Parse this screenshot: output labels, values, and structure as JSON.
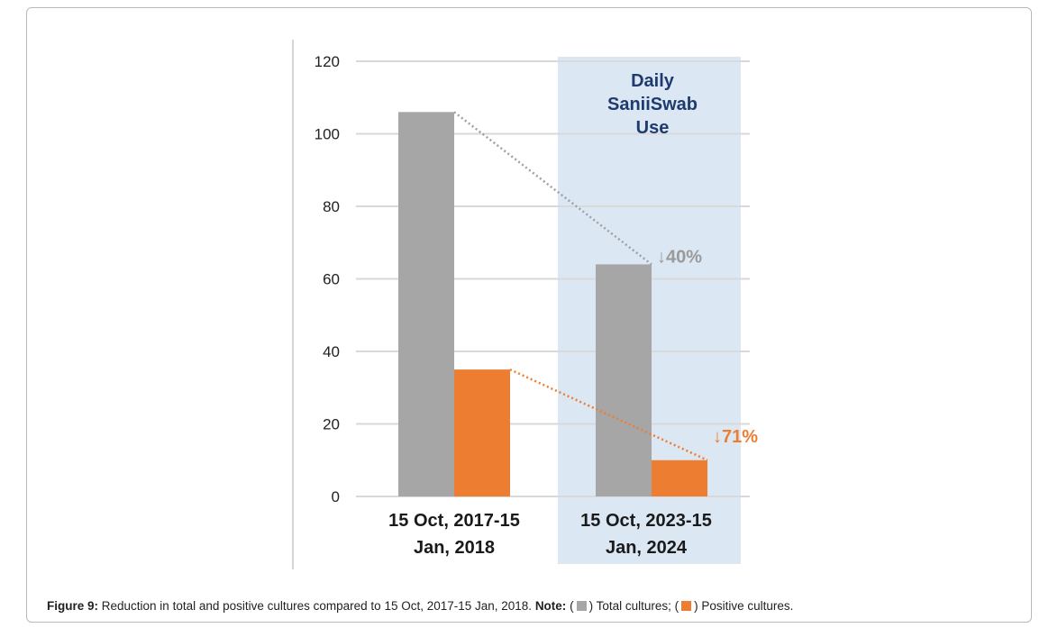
{
  "chart_data": {
    "type": "bar",
    "categories": [
      "15 Oct, 2017-15 Jan, 2018",
      "15 Oct, 2023-15 Jan, 2024"
    ],
    "category_lines": [
      [
        "15 Oct, 2017-15",
        "Jan, 2018"
      ],
      [
        "15 Oct, 2023-15",
        "Jan, 2024"
      ]
    ],
    "series": [
      {
        "name": "Total cultures",
        "values": [
          106,
          64
        ],
        "color": "#a6a6a6"
      },
      {
        "name": "Positive cultures",
        "values": [
          35,
          10
        ],
        "color": "#ed7d31"
      }
    ],
    "ylim": [
      0,
      120
    ],
    "yticks": [
      0,
      20,
      40,
      60,
      80,
      100,
      120
    ],
    "grid": true,
    "shaded_region_label_lines": [
      "Daily",
      "SaniiSwab",
      "Use"
    ],
    "shaded_region_color": "#dce7f4",
    "annotations": [
      {
        "text": "↓40%",
        "series": 0,
        "color": "#9a9a9a"
      },
      {
        "text": "↓71%",
        "series": 1,
        "color": "#ed7d31"
      }
    ]
  },
  "caption": {
    "figure_label": "Figure 9:",
    "text": " Reduction in total and positive cultures compared to 15 Oct, 2017-15 Jan, 2018. ",
    "note_label": "Note:",
    "open1": " (",
    "legend1": ") Total cultures; (",
    "legend2": ") Positive cultures."
  }
}
